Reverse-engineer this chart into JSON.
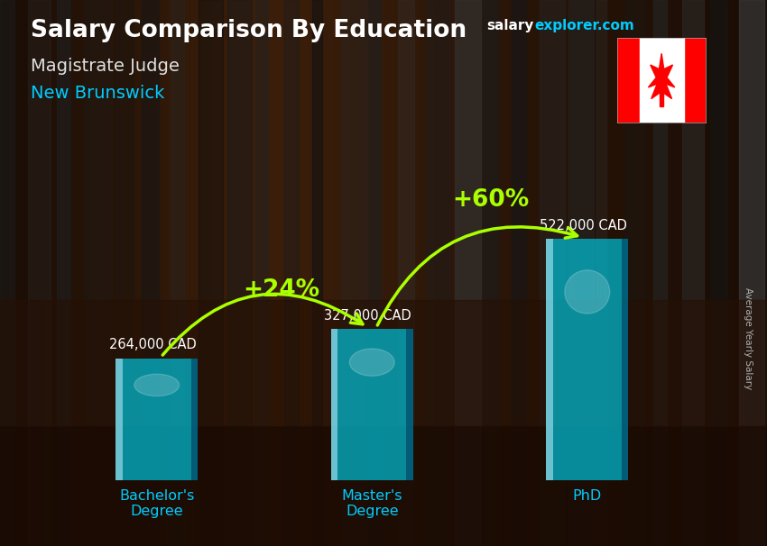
{
  "title": "Salary Comparison By Education",
  "subtitle1": "Magistrate Judge",
  "subtitle2": "New Brunswick",
  "brand_salary": "salary",
  "brand_explorer": "explorer.com",
  "ylabel": "Average Yearly Salary",
  "categories": [
    "Bachelor's\nDegree",
    "Master's\nDegree",
    "PhD"
  ],
  "values": [
    264000,
    327000,
    522000
  ],
  "labels": [
    "264,000 CAD",
    "327,000 CAD",
    "522,000 CAD"
  ],
  "bar_color": "#00bcd4",
  "bar_alpha": 0.72,
  "bar_highlight": "#80eeff",
  "bar_dark": "#006080",
  "bg_color": "#3a2010",
  "title_color": "#ffffff",
  "subtitle1_color": "#e0e0e0",
  "subtitle2_color": "#00ccff",
  "label_color": "#ffffff",
  "arrow_color": "#aaff00",
  "pct_labels": [
    "+24%",
    "+60%"
  ],
  "bar_width": 0.38,
  "ylim": [
    0,
    660000
  ],
  "flag_red": "#FF0000",
  "brand_color_salary": "#ffffff",
  "brand_color_explorer": "#00ccff"
}
